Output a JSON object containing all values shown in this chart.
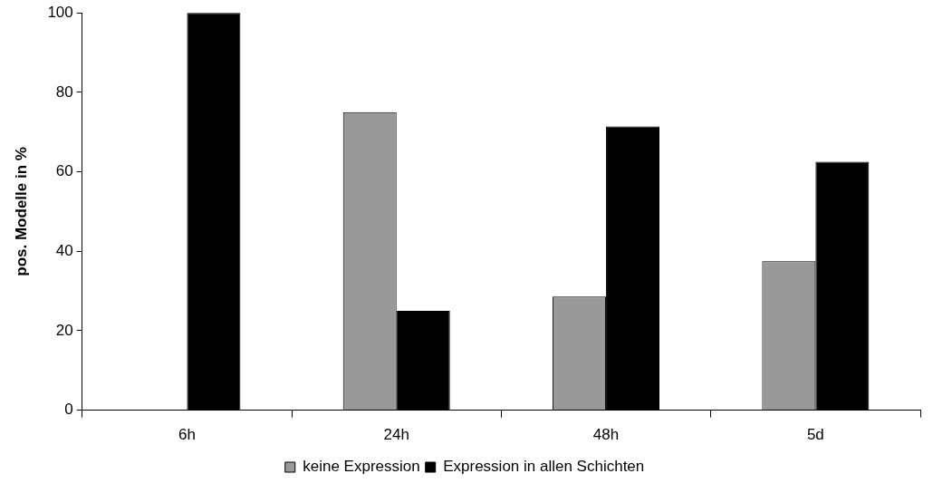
{
  "chart_data": {
    "type": "bar",
    "ylabel": "pos. Modelle in %",
    "categories": [
      "6h",
      "24h",
      "48h",
      "5d"
    ],
    "series": [
      {
        "name": "keine Expression",
        "color": "#999999",
        "values": [
          0,
          75,
          28.6,
          37.5
        ]
      },
      {
        "name": "Expression in allen Schichten",
        "color": "#000000",
        "values": [
          100,
          25,
          71.4,
          62.5
        ]
      }
    ],
    "ylim": [
      0,
      100
    ],
    "yticks": [
      0,
      20,
      40,
      60,
      80,
      100
    ],
    "grid": false,
    "legend": "bottom"
  }
}
